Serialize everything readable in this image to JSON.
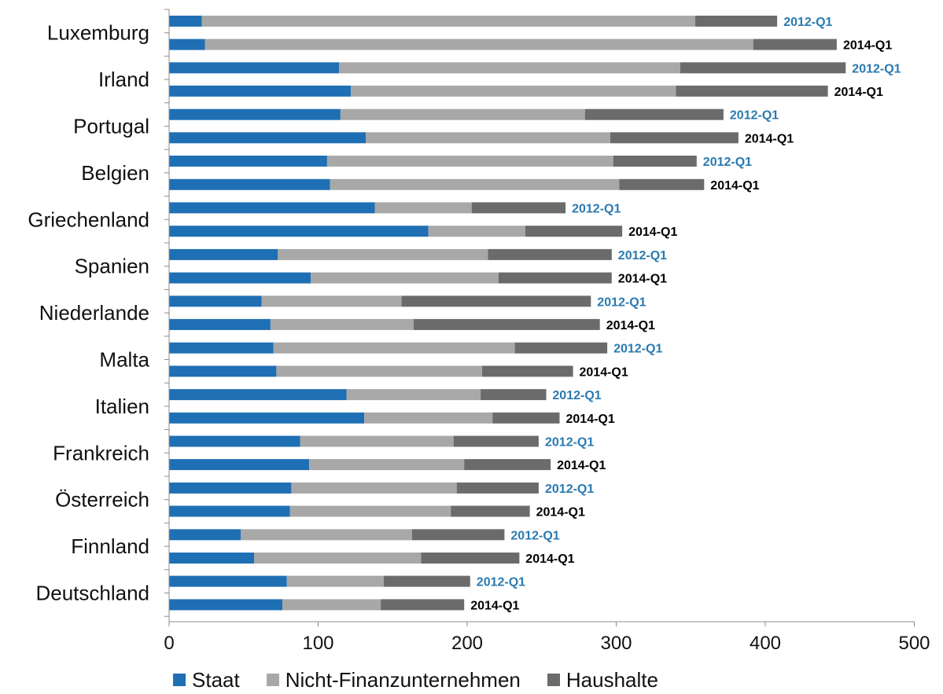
{
  "chart_data": {
    "type": "bar",
    "orientation": "horizontal",
    "stacked": true,
    "countries": [
      "Luxemburg",
      "Irland",
      "Portugal",
      "Belgien",
      "Griechenland",
      "Spanien",
      "Niederlande",
      "Malta",
      "Italien",
      "Frankreich",
      "Österreich",
      "Finnland",
      "Deutschland"
    ],
    "bar_labels": {
      "early": "2012-Q1",
      "late": "2014-Q1"
    },
    "label_colors": {
      "early": "#2a7ab0",
      "late": "#000000"
    },
    "series": [
      {
        "name": "Staat",
        "color": "#1f6fb4",
        "values": [
          [
            22,
            24
          ],
          [
            114,
            122
          ],
          [
            115,
            132
          ],
          [
            106,
            108
          ],
          [
            138,
            174
          ],
          [
            73,
            95
          ],
          [
            62,
            68
          ],
          [
            70,
            72
          ],
          [
            119,
            131
          ],
          [
            88,
            94
          ],
          [
            82,
            81
          ],
          [
            48,
            57
          ],
          [
            79,
            76
          ]
        ]
      },
      {
        "name": "Nicht-Finanzunternehmen",
        "color": "#a8a8a8",
        "values": [
          [
            331,
            368
          ],
          [
            229,
            218
          ],
          [
            164,
            164
          ],
          [
            192,
            194
          ],
          [
            65,
            65
          ],
          [
            141,
            126
          ],
          [
            94,
            96
          ],
          [
            162,
            138
          ],
          [
            90,
            86
          ],
          [
            103,
            104
          ],
          [
            111,
            108
          ],
          [
            115,
            112
          ],
          [
            65,
            66
          ]
        ]
      },
      {
        "name": "Haushalte",
        "color": "#6b6b6b",
        "values": [
          [
            55,
            56
          ],
          [
            111,
            102
          ],
          [
            93,
            86
          ],
          [
            56,
            57
          ],
          [
            63,
            65
          ],
          [
            83,
            76
          ],
          [
            127,
            125
          ],
          [
            62,
            61
          ],
          [
            44,
            45
          ],
          [
            57,
            58
          ],
          [
            55,
            53
          ],
          [
            62,
            66
          ],
          [
            58,
            56
          ]
        ]
      }
    ],
    "xlim": [
      0,
      500
    ],
    "xticks": [
      "0",
      "100",
      "200",
      "300",
      "400",
      "500"
    ],
    "legend_position": "bottom",
    "grid": false
  }
}
